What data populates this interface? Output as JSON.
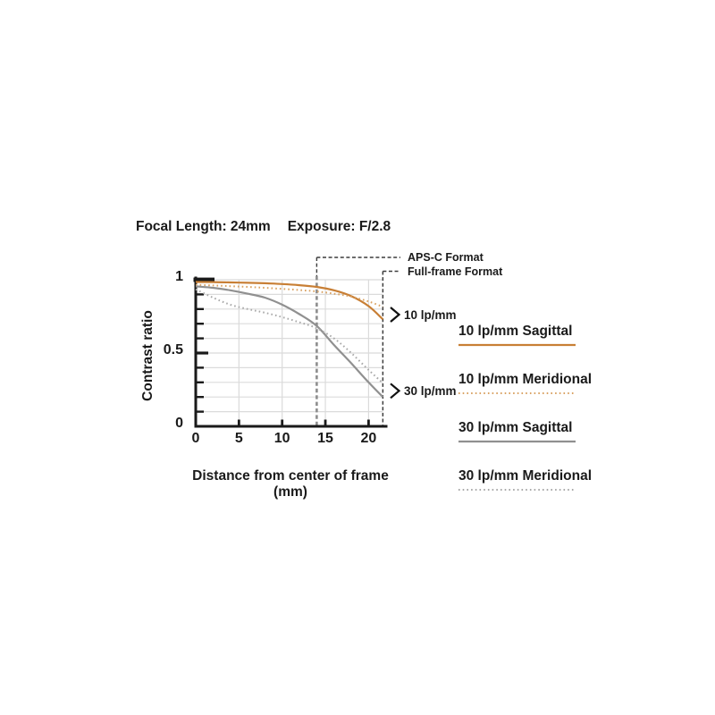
{
  "title": {
    "focal": "Focal Length: 24mm",
    "exposure": "Exposure: F/2.8"
  },
  "axes": {
    "y_label": "Contrast ratio",
    "x_label": "Distance from center of frame (mm)",
    "y_ticks": [
      {
        "v": 1,
        "label": "1"
      },
      {
        "v": 0.5,
        "label": "0.5"
      },
      {
        "v": 0,
        "label": "0"
      }
    ],
    "x_ticks": [
      {
        "v": 0,
        "label": "0"
      },
      {
        "v": 5,
        "label": "5"
      },
      {
        "v": 10,
        "label": "10"
      },
      {
        "v": 15,
        "label": "15"
      },
      {
        "v": 20,
        "label": "20"
      }
    ]
  },
  "annotations": {
    "aps_c": "APS-C Format",
    "full_frame": "Full-frame Format",
    "group_10": "10 lp/mm",
    "group_30": "30 lp/mm"
  },
  "legend": [
    {
      "label": "10 lp/mm Sagittal",
      "color": "#C87F35",
      "style": "solid"
    },
    {
      "label": "10 lp/mm Meridional",
      "color": "#D9A263",
      "style": "dotted"
    },
    {
      "label": "30 lp/mm Sagittal",
      "color": "#909090",
      "style": "solid"
    },
    {
      "label": "30 lp/mm Meridional",
      "color": "#A8A8A8",
      "style": "dotted"
    }
  ],
  "colors": {
    "orange_solid": "#C87F35",
    "orange_dotted": "#D9A263",
    "gray_solid": "#909090",
    "gray_dotted": "#A8A8A8",
    "axis": "#1a1a1a",
    "grid": "#DBDBDB",
    "dashed_thin": "#3c3c3c",
    "dashed_apsc": "#8E8E8E",
    "text": "#1a1a1a"
  },
  "chart_data": {
    "type": "line",
    "title": "Focal Length: 24mm  Exposure: F/2.8",
    "xlabel": "Distance from center of frame (mm)",
    "ylabel": "Contrast ratio",
    "xlim": [
      0,
      21.65
    ],
    "ylim": [
      0,
      1
    ],
    "grid": true,
    "legend_position": "right",
    "x_ticks": [
      0,
      5,
      10,
      15,
      20
    ],
    "y_ticks_labeled": [
      0,
      0.5,
      1
    ],
    "y_minor_tick_step": 0.1,
    "x": [
      0,
      2,
      4,
      6,
      8,
      10,
      12,
      14,
      16,
      18,
      20,
      21.65
    ],
    "series": [
      {
        "name": "10 lp/mm Sagittal",
        "style": "solid",
        "colorKey": "orange_solid",
        "values": [
          0.985,
          0.984,
          0.982,
          0.979,
          0.976,
          0.971,
          0.963,
          0.951,
          0.928,
          0.888,
          0.82,
          0.73
        ]
      },
      {
        "name": "10 lp/mm Meridional",
        "style": "dotted",
        "colorKey": "orange_dotted",
        "values": [
          0.965,
          0.961,
          0.956,
          0.951,
          0.945,
          0.938,
          0.93,
          0.92,
          0.905,
          0.885,
          0.852,
          0.815
        ]
      },
      {
        "name": "30 lp/mm Sagittal",
        "style": "solid",
        "colorKey": "gray_solid",
        "values": [
          0.955,
          0.945,
          0.928,
          0.905,
          0.878,
          0.83,
          0.765,
          0.685,
          0.555,
          0.43,
          0.3,
          0.2
        ]
      },
      {
        "name": "30 lp/mm Meridional",
        "style": "dotted",
        "colorKey": "gray_dotted",
        "values": [
          0.935,
          0.878,
          0.83,
          0.8,
          0.775,
          0.745,
          0.71,
          0.669,
          0.6,
          0.5,
          0.385,
          0.295
        ]
      }
    ],
    "reference_lines": [
      {
        "x": 14.0,
        "label": "APS-C Format"
      },
      {
        "x": 21.65,
        "label": "Full-frame Format"
      }
    ],
    "group_markers": [
      {
        "label": "10 lp/mm",
        "y_center": 0.762
      },
      {
        "label": "30 lp/mm",
        "y_center": 0.242
      }
    ]
  }
}
